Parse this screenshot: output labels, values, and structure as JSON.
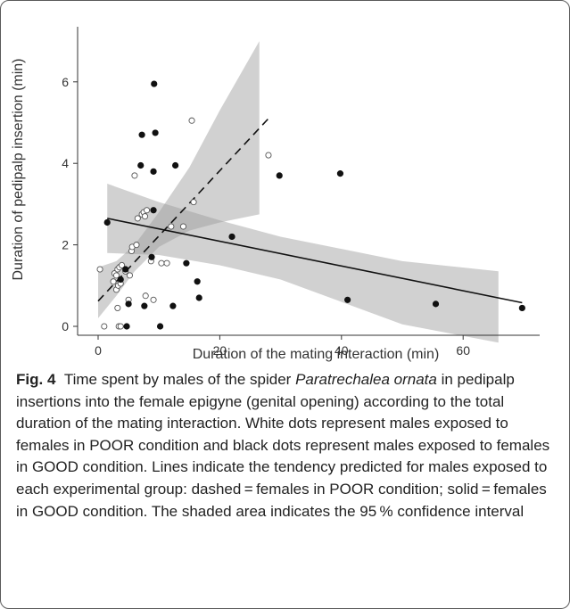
{
  "chart_data": {
    "type": "scatter",
    "xlabel": "Duration of the mating interaction (min)",
    "ylabel": "Duration of pedipalp insertion (min)",
    "xlim": [
      -2,
      71
    ],
    "ylim": [
      -0.15,
      7.3
    ],
    "x_ticks": [
      0,
      20,
      40,
      60
    ],
    "y_ticks": [
      0,
      2,
      4,
      6
    ],
    "grid": false,
    "legend": "none",
    "series": [
      {
        "group": "POOR",
        "marker": "open-circle",
        "points": [
          [
            0.3,
            1.4
          ],
          [
            1,
            0
          ],
          [
            2.5,
            1.1
          ],
          [
            2.7,
            1.3
          ],
          [
            3,
            1.25
          ],
          [
            3.2,
            1.4
          ],
          [
            3,
            0.9
          ],
          [
            3.2,
            0.45
          ],
          [
            3.3,
            1.0
          ],
          [
            3.5,
            1.45
          ],
          [
            3.7,
            1.05
          ],
          [
            3.9,
            1.5
          ],
          [
            3.4,
            0
          ],
          [
            3.7,
            0
          ],
          [
            4.5,
            1.35
          ],
          [
            5,
            0.65
          ],
          [
            5.2,
            1.25
          ],
          [
            5.5,
            1.85
          ],
          [
            5.6,
            1.95
          ],
          [
            6,
            3.7
          ],
          [
            6.5,
            2.65
          ],
          [
            6.3,
            2.0
          ],
          [
            7.2,
            2.75
          ],
          [
            7.5,
            2.8
          ],
          [
            7.7,
            2.7
          ],
          [
            8,
            2.85
          ],
          [
            7.8,
            0.75
          ],
          [
            8.7,
            1.6
          ],
          [
            9.1,
            0.65
          ],
          [
            10.4,
            1.55
          ],
          [
            11.3,
            1.55
          ],
          [
            12,
            2.45
          ],
          [
            14,
            2.45
          ],
          [
            15.4,
            5.05
          ],
          [
            15.7,
            3.05
          ],
          [
            28,
            4.2
          ]
        ]
      },
      {
        "group": "GOOD",
        "marker": "filled-circle",
        "points": [
          [
            1.5,
            2.55
          ],
          [
            3.7,
            1.15
          ],
          [
            4.5,
            1.4
          ],
          [
            4.7,
            0
          ],
          [
            5,
            0.55
          ],
          [
            7,
            3.95
          ],
          [
            7.2,
            4.7
          ],
          [
            7.6,
            0.5
          ],
          [
            8.8,
            1.7
          ],
          [
            9.1,
            2.85
          ],
          [
            9.1,
            3.8
          ],
          [
            9.2,
            5.95
          ],
          [
            9.4,
            4.75
          ],
          [
            10.2,
            0
          ],
          [
            12.3,
            0.5
          ],
          [
            12.7,
            3.95
          ],
          [
            14.5,
            1.55
          ],
          [
            16.3,
            1.1
          ],
          [
            16.6,
            0.7
          ],
          [
            22,
            2.2
          ],
          [
            29.8,
            3.7
          ],
          [
            39.8,
            3.75
          ],
          [
            41,
            0.65
          ],
          [
            55.5,
            0.55
          ],
          [
            69.7,
            0.45
          ]
        ]
      }
    ],
    "fits": [
      {
        "group": "POOR",
        "style": "dashed",
        "x": [
          0,
          28
        ],
        "y": [
          0.62,
          5.1
        ]
      },
      {
        "group": "GOOD",
        "style": "solid",
        "x": [
          1.5,
          69.7
        ],
        "y": [
          2.65,
          0.58
        ]
      }
    ],
    "confidence_bands": [
      {
        "group": "POOR",
        "x": [
          0,
          3,
          6,
          10,
          15,
          20,
          26.5
        ],
        "upper": [
          1.45,
          1.6,
          2.0,
          2.8,
          3.9,
          5.3,
          7.0
        ],
        "lower": [
          0.2,
          0.75,
          1.35,
          1.95,
          2.35,
          2.55,
          2.75
        ]
      },
      {
        "group": "GOOD",
        "x": [
          1.5,
          10,
          20,
          30,
          40,
          50,
          65.8
        ],
        "upper": [
          3.5,
          3.05,
          2.6,
          2.2,
          1.9,
          1.6,
          1.35
        ],
        "lower": [
          1.8,
          1.75,
          1.5,
          1.15,
          0.6,
          0.05,
          -0.4
        ]
      }
    ]
  },
  "caption": {
    "label": "Fig. 4",
    "text_before": "Time spent by males of the spider ",
    "species": "Paratrechalea ornata",
    "text_after": " in pedipalp insertions into the female epigyne (genital opening) according to the total duration of the mating interaction. White dots represent males exposed to females in POOR condition and black dots represent males exposed to females in GOOD condition. Lines indicate the tendency predicted for males exposed to each experimental group: dashed = females in POOR condition; solid = females in GOOD condition. The shaded area indicates the 95 % confidence interval"
  }
}
